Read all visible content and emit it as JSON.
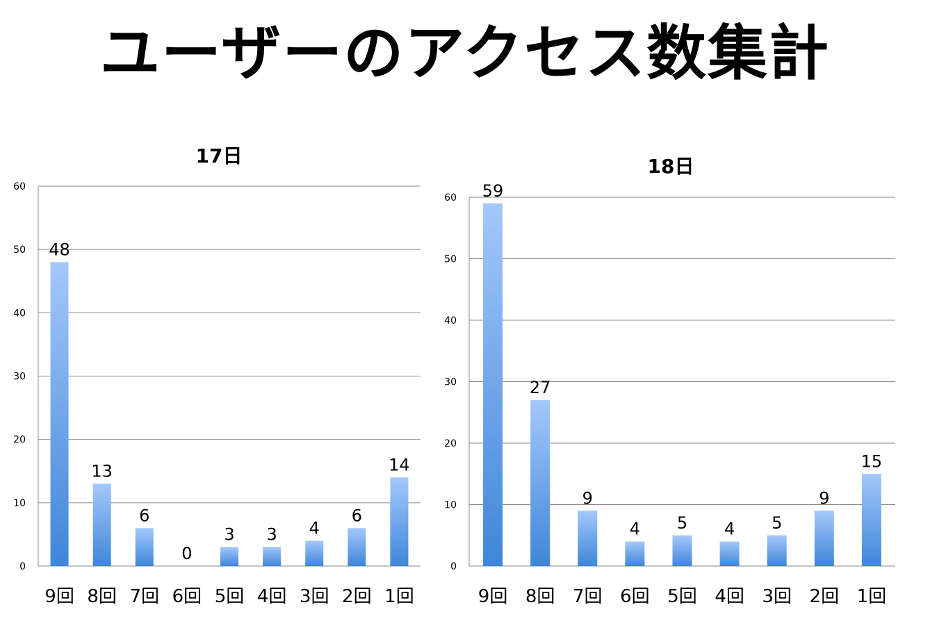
{
  "title": "ユーザーのアクセス数集計",
  "colors": {
    "bar_top": "#a4c8fb",
    "bar_bottom": "#3f86d8",
    "grid": "#8a8a8a"
  },
  "chart_data": [
    {
      "type": "bar",
      "title": "17日",
      "categories": [
        "9回",
        "8回",
        "7回",
        "6回",
        "5回",
        "4回",
        "3回",
        "2回",
        "1回"
      ],
      "values": [
        48,
        13,
        6,
        0,
        3,
        3,
        4,
        6,
        14
      ],
      "ylim": [
        0,
        60
      ],
      "yticks": [
        0,
        10,
        20,
        30,
        40,
        50,
        60
      ],
      "grid": true,
      "data_labels": true,
      "legend": "none"
    },
    {
      "type": "bar",
      "title": "18日",
      "categories": [
        "9回",
        "8回",
        "7回",
        "6回",
        "5回",
        "4回",
        "3回",
        "2回",
        "1回"
      ],
      "values": [
        59,
        27,
        9,
        4,
        5,
        4,
        5,
        9,
        15
      ],
      "ylim": [
        0,
        60
      ],
      "yticks": [
        0,
        10,
        20,
        30,
        40,
        50,
        60
      ],
      "grid": true,
      "data_labels": true,
      "legend": "none"
    }
  ]
}
